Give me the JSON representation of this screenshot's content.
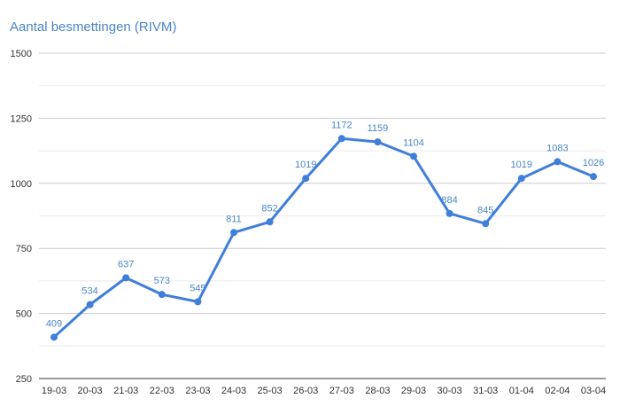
{
  "chart_data": {
    "type": "line",
    "title": "Aantal besmettingen (RIVM)",
    "xlabel": "",
    "ylabel": "",
    "categories": [
      "19-03",
      "20-03",
      "21-03",
      "22-03",
      "23-03",
      "24-03",
      "25-03",
      "26-03",
      "27-03",
      "28-03",
      "29-03",
      "30-03",
      "31-03",
      "01-04",
      "02-04",
      "03-04"
    ],
    "series": [
      {
        "values": [
          409,
          534,
          637,
          573,
          545,
          811,
          852,
          1019,
          1172,
          1159,
          1104,
          884,
          845,
          1019,
          1083,
          1026
        ]
      }
    ],
    "ylim": [
      250,
      1500
    ],
    "yticks": [
      250,
      500,
      750,
      1000,
      1250,
      1500
    ],
    "grid": true,
    "color": "#3f7fd9"
  }
}
